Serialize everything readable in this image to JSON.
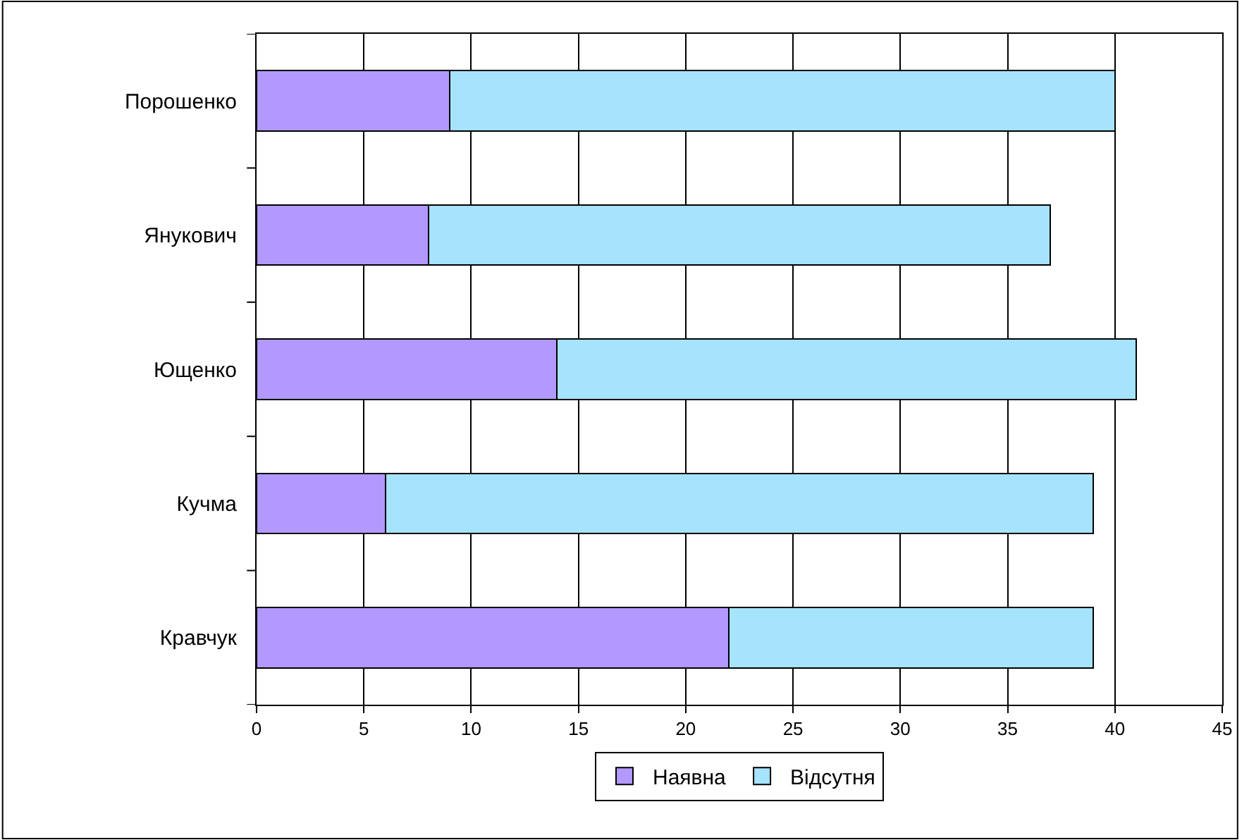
{
  "chart_data": {
    "type": "bar",
    "orientation": "horizontal",
    "stacked": true,
    "categories": [
      "Порошенко",
      "Янукович",
      "Ющенко",
      "Кучма",
      "Кравчук"
    ],
    "series": [
      {
        "name": "Наявна",
        "color": "#b399ff",
        "values": [
          9,
          8,
          14,
          6,
          22
        ]
      },
      {
        "name": "Відсутня",
        "color": "#a6e3fc",
        "values": [
          31,
          29,
          27,
          33,
          17
        ]
      }
    ],
    "xlim": [
      0,
      45
    ],
    "xticks": [
      0,
      5,
      10,
      15,
      20,
      25,
      30,
      35,
      40,
      45
    ],
    "grid": "x",
    "legend": "bottom"
  }
}
